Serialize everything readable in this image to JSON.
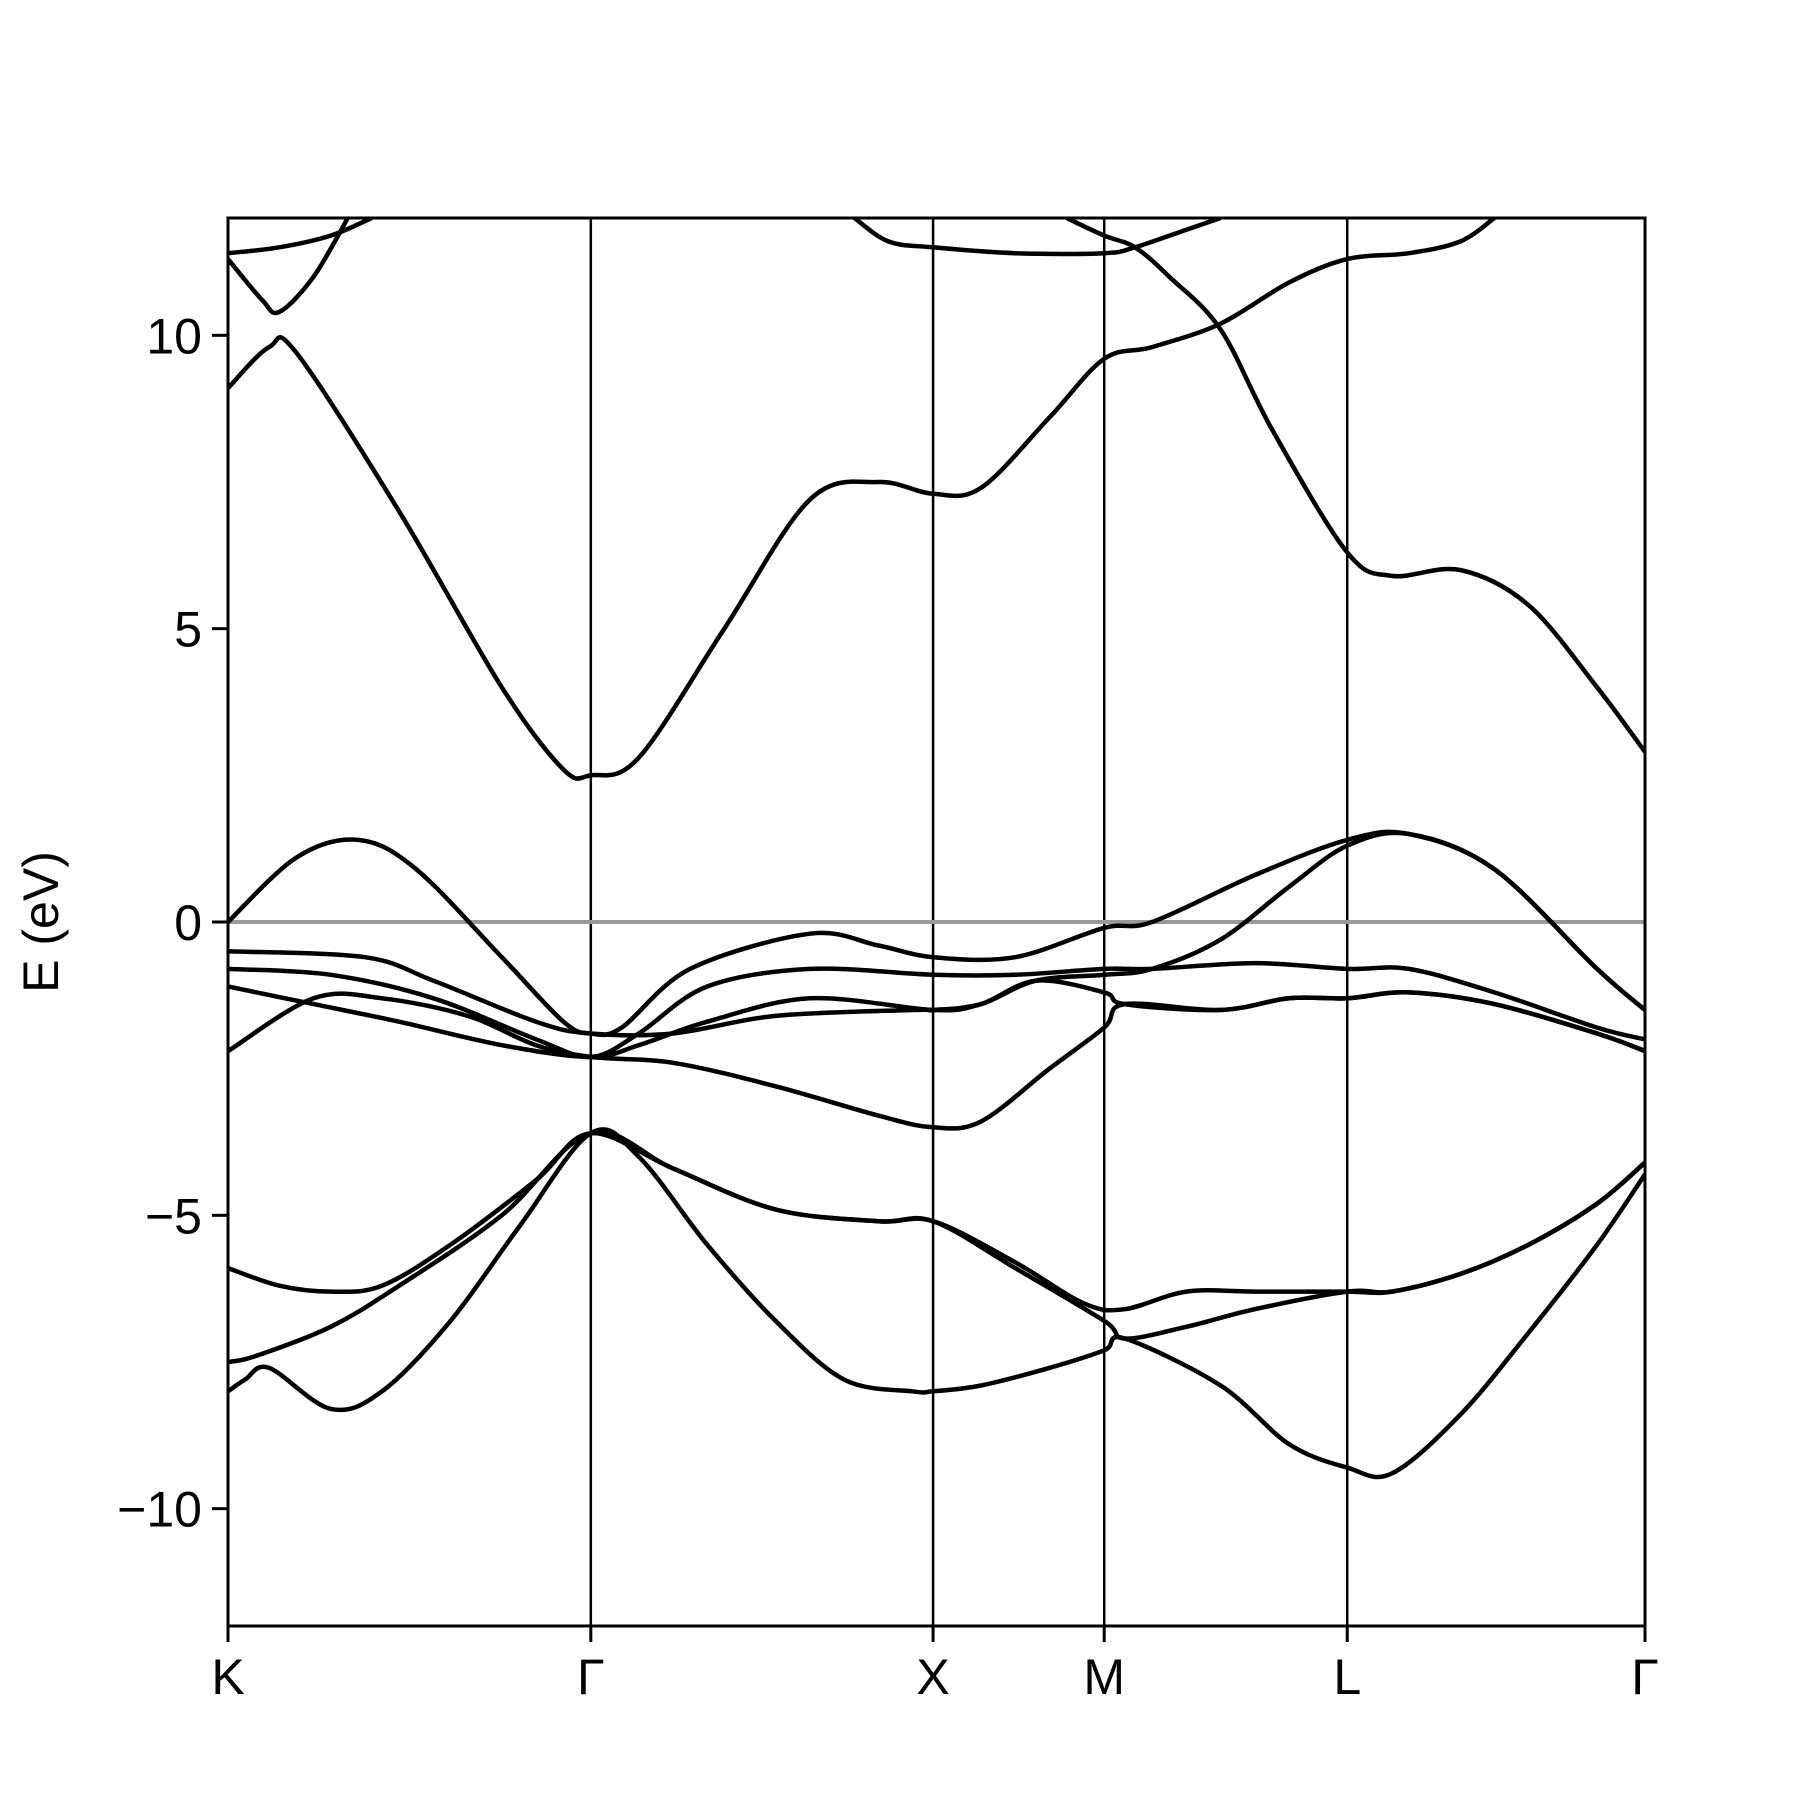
{
  "chart_data": {
    "type": "line",
    "ylabel": "E (eV)",
    "ylim": [
      -12,
      12
    ],
    "y_ticks": [
      {
        "value": 10,
        "label": "10"
      },
      {
        "value": 5,
        "label": "5"
      },
      {
        "value": 0,
        "label": "0"
      },
      {
        "value": -5,
        "label": "−5"
      },
      {
        "value": -10,
        "label": "−10"
      }
    ],
    "k_path": [
      {
        "label": "K",
        "k": 0
      },
      {
        "label": "Γ",
        "k": 1.06
      },
      {
        "label": "X",
        "k": 2.06
      },
      {
        "label": "M",
        "k": 2.56
      },
      {
        "label": "L",
        "k": 3.27
      },
      {
        "label": "Γ",
        "k": 4.14
      }
    ],
    "fermi_level": 0,
    "colors": {
      "bands": "#000000",
      "fermi": "#999999",
      "frame": "#000000"
    },
    "series": [
      {
        "values": [
          [
            0,
            -8.0
          ],
          [
            0.05,
            -7.8
          ],
          [
            0.12,
            -7.6
          ],
          [
            0.3,
            -8.3
          ],
          [
            0.45,
            -8.0
          ],
          [
            0.65,
            -6.8
          ],
          [
            0.85,
            -5.2
          ],
          [
            1.06,
            -3.6
          ],
          [
            1.2,
            -4.0
          ],
          [
            1.4,
            -5.5
          ],
          [
            1.6,
            -6.8
          ],
          [
            1.8,
            -7.8
          ],
          [
            2.0,
            -8.0
          ],
          [
            2.06,
            -8.0
          ],
          [
            2.2,
            -7.9
          ],
          [
            2.4,
            -7.6
          ],
          [
            2.56,
            -7.3
          ],
          [
            2.62,
            -7.1
          ],
          [
            2.9,
            -7.9
          ],
          [
            3.1,
            -8.9
          ],
          [
            3.27,
            -9.3
          ],
          [
            3.4,
            -9.4
          ],
          [
            3.6,
            -8.4
          ],
          [
            3.8,
            -7.0
          ],
          [
            4.0,
            -5.5
          ],
          [
            4.14,
            -4.3
          ]
        ]
      },
      {
        "values": [
          [
            0,
            -7.5
          ],
          [
            0.08,
            -7.4
          ],
          [
            0.3,
            -6.9
          ],
          [
            0.5,
            -6.2
          ],
          [
            0.8,
            -5.0
          ],
          [
            1.06,
            -3.6
          ],
          [
            1.3,
            -4.2
          ],
          [
            1.6,
            -4.9
          ],
          [
            1.9,
            -5.1
          ],
          [
            2.06,
            -5.1
          ],
          [
            2.3,
            -5.9
          ],
          [
            2.56,
            -6.8
          ],
          [
            2.62,
            -7.1
          ],
          [
            2.8,
            -6.9
          ],
          [
            3.0,
            -6.6
          ],
          [
            3.27,
            -6.3
          ],
          [
            3.4,
            -6.3
          ],
          [
            3.6,
            -6.0
          ],
          [
            3.8,
            -5.5
          ],
          [
            4.0,
            -4.8
          ],
          [
            4.14,
            -4.1
          ]
        ]
      },
      {
        "values": [
          [
            0,
            -5.9
          ],
          [
            0.15,
            -6.2
          ],
          [
            0.3,
            -6.3
          ],
          [
            0.45,
            -6.2
          ],
          [
            0.65,
            -5.5
          ],
          [
            0.9,
            -4.4
          ],
          [
            1.06,
            -3.6
          ],
          [
            1.3,
            -4.2
          ],
          [
            1.6,
            -4.9
          ],
          [
            1.9,
            -5.1
          ],
          [
            2.06,
            -5.1
          ],
          [
            2.3,
            -5.8
          ],
          [
            2.5,
            -6.5
          ],
          [
            2.62,
            -6.6
          ],
          [
            2.8,
            -6.3
          ],
          [
            3.0,
            -6.3
          ],
          [
            3.27,
            -6.3
          ],
          [
            3.4,
            -6.3
          ],
          [
            3.6,
            -6.0
          ],
          [
            3.8,
            -5.5
          ],
          [
            4.0,
            -4.8
          ],
          [
            4.14,
            -4.1
          ]
        ]
      },
      {
        "values": [
          [
            0,
            -2.2
          ],
          [
            0.25,
            -1.3
          ],
          [
            0.45,
            -1.3
          ],
          [
            0.7,
            -1.6
          ],
          [
            0.9,
            -2.1
          ],
          [
            1.06,
            -2.3
          ],
          [
            1.3,
            -2.4
          ],
          [
            1.6,
            -2.8
          ],
          [
            1.9,
            -3.3
          ],
          [
            2.06,
            -3.5
          ],
          [
            2.2,
            -3.4
          ],
          [
            2.4,
            -2.5
          ],
          [
            2.56,
            -1.8
          ],
          [
            2.62,
            -1.4
          ],
          [
            2.9,
            -1.5
          ],
          [
            3.1,
            -1.3
          ],
          [
            3.27,
            -1.3
          ],
          [
            3.45,
            -1.2
          ],
          [
            3.7,
            -1.4
          ],
          [
            4.0,
            -1.9
          ],
          [
            4.14,
            -2.2
          ]
        ]
      },
      {
        "values": [
          [
            0,
            -1.1
          ],
          [
            0.25,
            -1.4
          ],
          [
            0.5,
            -1.7
          ],
          [
            0.8,
            -2.1
          ],
          [
            1.06,
            -2.3
          ],
          [
            1.2,
            -2.1
          ],
          [
            1.4,
            -1.7
          ],
          [
            1.7,
            -1.3
          ],
          [
            2.06,
            -1.5
          ],
          [
            2.2,
            -1.4
          ],
          [
            2.36,
            -1.0
          ],
          [
            2.56,
            -1.2
          ],
          [
            2.62,
            -1.4
          ],
          [
            2.9,
            -1.5
          ],
          [
            3.1,
            -1.3
          ],
          [
            3.27,
            -1.3
          ],
          [
            3.45,
            -1.2
          ],
          [
            3.7,
            -1.4
          ],
          [
            4.0,
            -1.9
          ],
          [
            4.14,
            -2.2
          ]
        ]
      },
      {
        "values": [
          [
            0,
            -0.8
          ],
          [
            0.3,
            -0.9
          ],
          [
            0.6,
            -1.3
          ],
          [
            0.9,
            -2.0
          ],
          [
            1.06,
            -2.3
          ],
          [
            1.2,
            -1.9
          ],
          [
            1.4,
            -1.1
          ],
          [
            1.7,
            -0.8
          ],
          [
            2.06,
            -0.9
          ],
          [
            2.3,
            -0.9
          ],
          [
            2.56,
            -0.8
          ],
          [
            2.7,
            -0.8
          ],
          [
            3.0,
            -0.7
          ],
          [
            3.27,
            -0.8
          ],
          [
            3.45,
            -0.8
          ],
          [
            3.7,
            -1.2
          ],
          [
            4.0,
            -1.8
          ],
          [
            4.14,
            -2.0
          ]
        ]
      },
      {
        "values": [
          [
            0,
            -0.5
          ],
          [
            0.4,
            -0.6
          ],
          [
            0.6,
            -1.0
          ],
          [
            0.9,
            -1.7
          ],
          [
            1.06,
            -1.9
          ],
          [
            1.3,
            -1.9
          ],
          [
            1.6,
            -1.6
          ],
          [
            2.0,
            -1.5
          ],
          [
            2.06,
            -1.5
          ],
          [
            2.2,
            -1.4
          ],
          [
            2.36,
            -1.0
          ],
          [
            2.56,
            -0.9
          ],
          [
            2.7,
            -0.8
          ],
          [
            2.9,
            -0.3
          ],
          [
            3.1,
            0.6
          ],
          [
            3.27,
            1.3
          ],
          [
            3.45,
            1.5
          ],
          [
            3.7,
            0.9
          ],
          [
            4.0,
            -0.8
          ],
          [
            4.14,
            -1.5
          ]
        ]
      },
      {
        "values": [
          [
            0,
            0.0
          ],
          [
            0.2,
            1.1
          ],
          [
            0.38,
            1.4
          ],
          [
            0.55,
            0.9
          ],
          [
            0.8,
            -0.6
          ],
          [
            0.98,
            -1.7
          ],
          [
            1.06,
            -1.9
          ],
          [
            1.15,
            -1.8
          ],
          [
            1.35,
            -0.8
          ],
          [
            1.7,
            -0.2
          ],
          [
            1.9,
            -0.4
          ],
          [
            2.06,
            -0.6
          ],
          [
            2.3,
            -0.6
          ],
          [
            2.56,
            -0.1
          ],
          [
            2.7,
            0.0
          ],
          [
            3.0,
            0.8
          ],
          [
            3.27,
            1.4
          ],
          [
            3.45,
            1.5
          ],
          [
            3.7,
            0.9
          ],
          [
            4.0,
            -0.8
          ],
          [
            4.14,
            -1.5
          ]
        ]
      },
      {
        "values": [
          [
            0,
            9.1
          ],
          [
            0.12,
            9.8
          ],
          [
            0.2,
            9.7
          ],
          [
            0.5,
            7.0
          ],
          [
            0.8,
            4.0
          ],
          [
            0.98,
            2.6
          ],
          [
            1.06,
            2.5
          ],
          [
            1.2,
            2.8
          ],
          [
            1.45,
            5.0
          ],
          [
            1.7,
            7.2
          ],
          [
            1.9,
            7.5
          ],
          [
            2.06,
            7.3
          ],
          [
            2.2,
            7.4
          ],
          [
            2.4,
            8.6
          ],
          [
            2.56,
            9.6
          ],
          [
            2.7,
            9.8
          ],
          [
            2.9,
            10.2
          ],
          [
            3.1,
            10.9
          ],
          [
            3.27,
            11.3
          ],
          [
            3.45,
            11.4
          ],
          [
            3.6,
            11.6
          ],
          [
            3.7,
            12.0
          ]
        ]
      },
      {
        "values": [
          [
            0,
            11.3
          ],
          [
            0.1,
            10.6
          ],
          [
            0.15,
            10.4
          ],
          [
            0.25,
            11.0
          ],
          [
            0.35,
            12.0
          ]
        ]
      },
      {
        "values": [
          [
            0,
            11.4
          ],
          [
            0.15,
            11.5
          ],
          [
            0.3,
            11.7
          ],
          [
            0.42,
            12.0
          ]
        ]
      },
      {
        "values": [
          [
            1.83,
            12.0
          ],
          [
            1.93,
            11.6
          ],
          [
            2.06,
            11.5
          ],
          [
            2.3,
            11.4
          ],
          [
            2.56,
            11.4
          ],
          [
            2.65,
            11.5
          ],
          [
            2.8,
            11.8
          ],
          [
            2.9,
            12.0
          ]
        ]
      },
      {
        "values": [
          [
            2.45,
            12.0
          ],
          [
            2.56,
            11.7
          ],
          [
            2.65,
            11.5
          ],
          [
            2.75,
            11.0
          ],
          [
            2.9,
            10.1
          ],
          [
            3.05,
            8.4
          ],
          [
            3.27,
            6.3
          ],
          [
            3.4,
            5.9
          ],
          [
            3.6,
            6.0
          ],
          [
            3.8,
            5.4
          ],
          [
            4.0,
            4.0
          ],
          [
            4.14,
            2.9
          ]
        ]
      }
    ]
  }
}
